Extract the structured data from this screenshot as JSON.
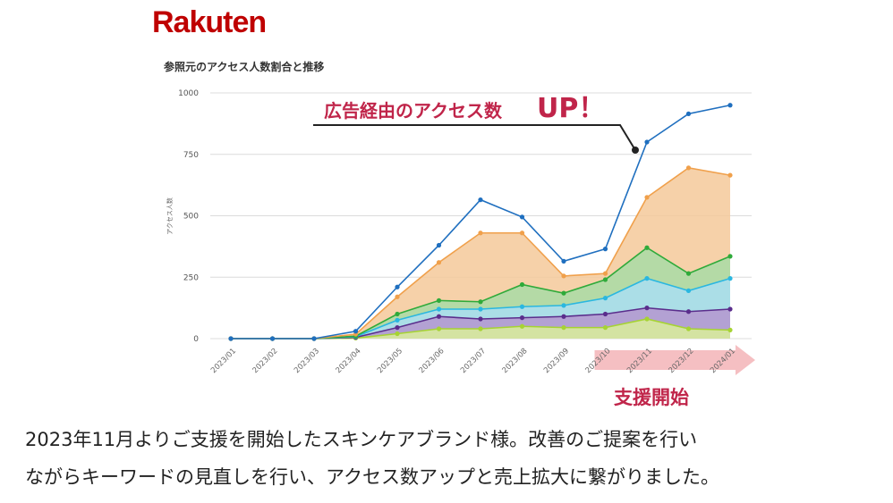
{
  "logo_text": "Rakuten",
  "callout": {
    "text": "広告経由のアクセス数",
    "emph": "UP！",
    "color": "#c0254a"
  },
  "support_label": "支援開始",
  "caption": {
    "line1": "2023年11月よりご支援を開始したスキンケアブランド様。改善のご提案を行い",
    "line2": "ながらキーワードの見直しを行い、アクセス数アップと売上拡大に繋がりました。"
  },
  "chart_data": {
    "type": "area",
    "title": "参照元のアクセス人数割合と推移",
    "ylabel": "アクセス人数",
    "xlabel": "",
    "ylim": [
      0,
      1000
    ],
    "yticks": [
      0,
      250,
      500,
      750,
      1000
    ],
    "grid": true,
    "categories": [
      "2023/01",
      "2023/02",
      "2023/03",
      "2023/04",
      "2023/05",
      "2023/06",
      "2023/07",
      "2023/08",
      "2023/09",
      "2023/10",
      "2023/11",
      "2023/12",
      "2024/01"
    ],
    "series": [
      {
        "color": "#1f6fbf",
        "fill": null,
        "values": [
          0,
          0,
          0,
          30,
          210,
          380,
          565,
          495,
          315,
          365,
          800,
          915,
          950
        ]
      },
      {
        "color": "#f0a04b",
        "fill": "#f5c99a",
        "values": [
          0,
          0,
          0,
          18,
          170,
          310,
          430,
          430,
          255,
          265,
          575,
          695,
          665
        ]
      },
      {
        "color": "#2faa3a",
        "fill": "#a8dca6",
        "values": [
          0,
          0,
          0,
          10,
          100,
          155,
          150,
          220,
          185,
          240,
          370,
          265,
          335
        ]
      },
      {
        "color": "#2ab7e0",
        "fill": "#a9def2",
        "values": [
          0,
          0,
          0,
          8,
          75,
          120,
          120,
          130,
          135,
          165,
          245,
          195,
          245
        ]
      },
      {
        "color": "#5a2d8c",
        "fill": "#b497cf",
        "values": [
          0,
          0,
          0,
          5,
          45,
          90,
          80,
          85,
          90,
          100,
          125,
          110,
          120
        ]
      },
      {
        "color": "#a6d333",
        "fill": "#d9ee99",
        "values": [
          0,
          0,
          0,
          2,
          20,
          40,
          40,
          50,
          45,
          45,
          80,
          40,
          35
        ]
      }
    ]
  }
}
